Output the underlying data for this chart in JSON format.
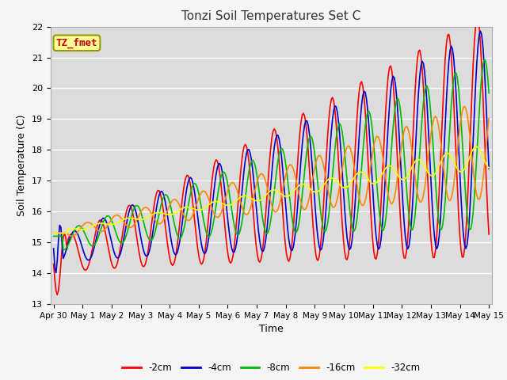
{
  "title": "Tonzi Soil Temperatures Set C",
  "xlabel": "Time",
  "ylabel": "Soil Temperature (C)",
  "ylim": [
    13.0,
    22.0
  ],
  "yticks": [
    13.0,
    14.0,
    15.0,
    16.0,
    17.0,
    18.0,
    19.0,
    20.0,
    21.0,
    22.0
  ],
  "xtick_labels": [
    "Apr 30",
    "May 1",
    "May 2",
    "May 3",
    "May 4",
    "May 5",
    "May 6",
    "May 7",
    "May 8",
    "May 9",
    "May 10",
    "May 11",
    "May 12",
    "May 13",
    "May 14",
    "May 15"
  ],
  "bg_color": "#dcdcdc",
  "fig_bg_color": "#f5f5f5",
  "grid_color": "#ffffff",
  "label_box_color": "#ffff99",
  "label_box_edge": "#999900",
  "label_text": "TZ_fmet",
  "label_text_color": "#cc0000",
  "series_colors": [
    "#ff0000",
    "#0000cc",
    "#00bb00",
    "#ff8800",
    "#ffff00"
  ],
  "series_labels": [
    "-2cm",
    "-4cm",
    "-8cm",
    "-16cm",
    "-32cm"
  ],
  "line_width": 1.2
}
